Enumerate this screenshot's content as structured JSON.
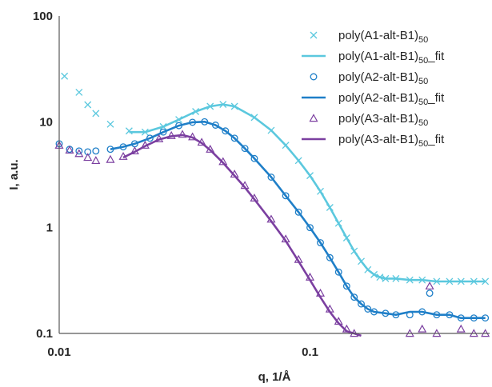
{
  "chart_data": {
    "type": "scatter",
    "title": "",
    "xlabel": "q, 1/Å",
    "ylabel": "I, a.u.",
    "xscale": "log",
    "yscale": "log",
    "xlim": [
      0.01,
      0.52
    ],
    "ylim": [
      0.1,
      100
    ],
    "xticks": [
      0.01,
      0.1
    ],
    "xtick_labels": [
      "0.01",
      "0.1"
    ],
    "yticks": [
      0.1,
      1,
      10,
      100
    ],
    "ytick_labels": [
      "0.1",
      "1",
      "10",
      "100"
    ],
    "grid": false,
    "legend_position": "top-right",
    "series": [
      {
        "name": "poly(A1-alt-B1)50",
        "name_main": "poly(A1-alt-B1)",
        "name_sub": "50",
        "name_suffix": "",
        "kind": "markers",
        "marker": "x",
        "color": "#5bc8de",
        "x": [
          0.0105,
          0.012,
          0.013,
          0.014,
          0.016,
          0.019,
          0.022,
          0.026,
          0.03,
          0.035,
          0.04,
          0.045,
          0.05,
          0.06,
          0.07,
          0.08,
          0.09,
          0.1,
          0.11,
          0.12,
          0.13,
          0.14,
          0.15,
          0.16,
          0.17,
          0.18,
          0.19,
          0.2,
          0.22,
          0.25,
          0.28,
          0.32,
          0.36,
          0.4,
          0.45,
          0.5
        ],
        "y": [
          27,
          19,
          14.5,
          12,
          9.5,
          8.2,
          8,
          9,
          10.5,
          12.5,
          14,
          14.6,
          14,
          11,
          8.3,
          6,
          4.3,
          3.1,
          2.2,
          1.55,
          1.1,
          0.8,
          0.6,
          0.48,
          0.4,
          0.36,
          0.34,
          0.33,
          0.33,
          0.32,
          0.32,
          0.31,
          0.31,
          0.31,
          0.31,
          0.31
        ]
      },
      {
        "name": "poly(A1-alt-B1)50_fit",
        "name_main": "poly(A1-alt-B1)",
        "name_sub": "50",
        "name_suffix": "_fit",
        "kind": "line",
        "color": "#5bc8de",
        "x": [
          0.019,
          0.022,
          0.026,
          0.03,
          0.035,
          0.04,
          0.045,
          0.05,
          0.06,
          0.07,
          0.08,
          0.09,
          0.1,
          0.11,
          0.12,
          0.13,
          0.14,
          0.15,
          0.16,
          0.17,
          0.18,
          0.19,
          0.2,
          0.22,
          0.25,
          0.28,
          0.32,
          0.36,
          0.4,
          0.45,
          0.5
        ],
        "y": [
          8.0,
          8.0,
          9.0,
          10.5,
          12.5,
          14.0,
          14.6,
          14.0,
          11.0,
          8.3,
          6.0,
          4.3,
          3.1,
          2.2,
          1.55,
          1.1,
          0.8,
          0.6,
          0.48,
          0.4,
          0.36,
          0.34,
          0.33,
          0.33,
          0.32,
          0.32,
          0.31,
          0.31,
          0.31,
          0.31,
          0.31
        ]
      },
      {
        "name": "poly(A2-alt-B1)50",
        "name_main": "poly(A2-alt-B1)",
        "name_sub": "50",
        "name_suffix": "",
        "kind": "markers",
        "marker": "circle",
        "color": "#1f7fc8",
        "x": [
          0.01,
          0.011,
          0.012,
          0.013,
          0.014,
          0.016,
          0.018,
          0.02,
          0.023,
          0.026,
          0.03,
          0.034,
          0.038,
          0.042,
          0.046,
          0.05,
          0.055,
          0.06,
          0.07,
          0.08,
          0.09,
          0.1,
          0.11,
          0.12,
          0.13,
          0.14,
          0.15,
          0.16,
          0.17,
          0.18,
          0.2,
          0.22,
          0.25,
          0.28,
          0.3,
          0.32,
          0.36,
          0.4,
          0.45,
          0.5
        ],
        "y": [
          6.2,
          5.5,
          5.3,
          5.2,
          5.3,
          5.5,
          5.8,
          6.2,
          7.0,
          8.0,
          9.2,
          9.9,
          10.0,
          9.3,
          8.2,
          7.0,
          5.6,
          4.5,
          3.0,
          2.0,
          1.4,
          1.0,
          0.72,
          0.52,
          0.38,
          0.28,
          0.22,
          0.19,
          0.17,
          0.16,
          0.155,
          0.15,
          0.15,
          0.16,
          0.24,
          0.15,
          0.15,
          0.14,
          0.14,
          0.14
        ]
      },
      {
        "name": "poly(A2-alt-B1)50_fit",
        "name_main": "poly(A2-alt-B1)",
        "name_sub": "50",
        "name_suffix": "_fit",
        "kind": "line",
        "color": "#1f7fc8",
        "x": [
          0.016,
          0.018,
          0.02,
          0.023,
          0.026,
          0.03,
          0.034,
          0.038,
          0.042,
          0.046,
          0.05,
          0.055,
          0.06,
          0.07,
          0.08,
          0.09,
          0.1,
          0.11,
          0.12,
          0.13,
          0.14,
          0.15,
          0.16,
          0.17,
          0.18,
          0.2,
          0.22,
          0.25,
          0.28,
          0.32,
          0.36,
          0.4,
          0.45,
          0.5
        ],
        "y": [
          5.5,
          5.8,
          6.2,
          7.0,
          8.0,
          9.2,
          9.9,
          10.0,
          9.3,
          8.2,
          7.0,
          5.6,
          4.5,
          3.0,
          2.0,
          1.4,
          1.0,
          0.72,
          0.52,
          0.38,
          0.28,
          0.22,
          0.19,
          0.17,
          0.16,
          0.155,
          0.15,
          0.16,
          0.16,
          0.15,
          0.15,
          0.14,
          0.14,
          0.14
        ]
      },
      {
        "name": "poly(A3-alt-B1)50",
        "name_main": "poly(A3-alt-B1)",
        "name_sub": "50",
        "name_suffix": "",
        "kind": "markers",
        "marker": "triangle",
        "color": "#7b3fa0",
        "x": [
          0.01,
          0.011,
          0.012,
          0.013,
          0.014,
          0.016,
          0.018,
          0.02,
          0.022,
          0.025,
          0.028,
          0.031,
          0.034,
          0.037,
          0.04,
          0.045,
          0.05,
          0.055,
          0.06,
          0.07,
          0.08,
          0.09,
          0.1,
          0.11,
          0.12,
          0.13,
          0.14,
          0.15,
          0.16,
          0.17,
          0.18,
          0.2,
          0.22,
          0.25,
          0.28,
          0.3,
          0.32,
          0.36,
          0.4,
          0.45,
          0.5
        ],
        "y": [
          6.0,
          5.4,
          5.0,
          4.6,
          4.3,
          4.4,
          4.7,
          5.3,
          6.0,
          6.9,
          7.4,
          7.6,
          7.2,
          6.4,
          5.5,
          4.2,
          3.2,
          2.5,
          1.9,
          1.2,
          0.78,
          0.5,
          0.34,
          0.24,
          0.17,
          0.13,
          0.11,
          0.1,
          0.095,
          0.09,
          0.09,
          0.09,
          0.09,
          0.1,
          0.11,
          0.28,
          0.1,
          0.09,
          0.11,
          0.1,
          0.1
        ]
      },
      {
        "name": "poly(A3-alt-B1)50_fit",
        "name_main": "poly(A3-alt-B1)",
        "name_sub": "50",
        "name_suffix": "_fit",
        "kind": "line",
        "color": "#7b3fa0",
        "x": [
          0.018,
          0.02,
          0.022,
          0.025,
          0.028,
          0.031,
          0.034,
          0.037,
          0.04,
          0.045,
          0.05,
          0.055,
          0.06,
          0.07,
          0.08,
          0.09,
          0.1,
          0.11,
          0.12,
          0.13,
          0.14,
          0.15,
          0.16
        ],
        "y": [
          4.6,
          5.2,
          5.9,
          6.8,
          7.3,
          7.5,
          7.1,
          6.3,
          5.4,
          4.1,
          3.1,
          2.4,
          1.85,
          1.15,
          0.75,
          0.48,
          0.32,
          0.22,
          0.16,
          0.125,
          0.105,
          0.1,
          0.095
        ]
      }
    ]
  }
}
